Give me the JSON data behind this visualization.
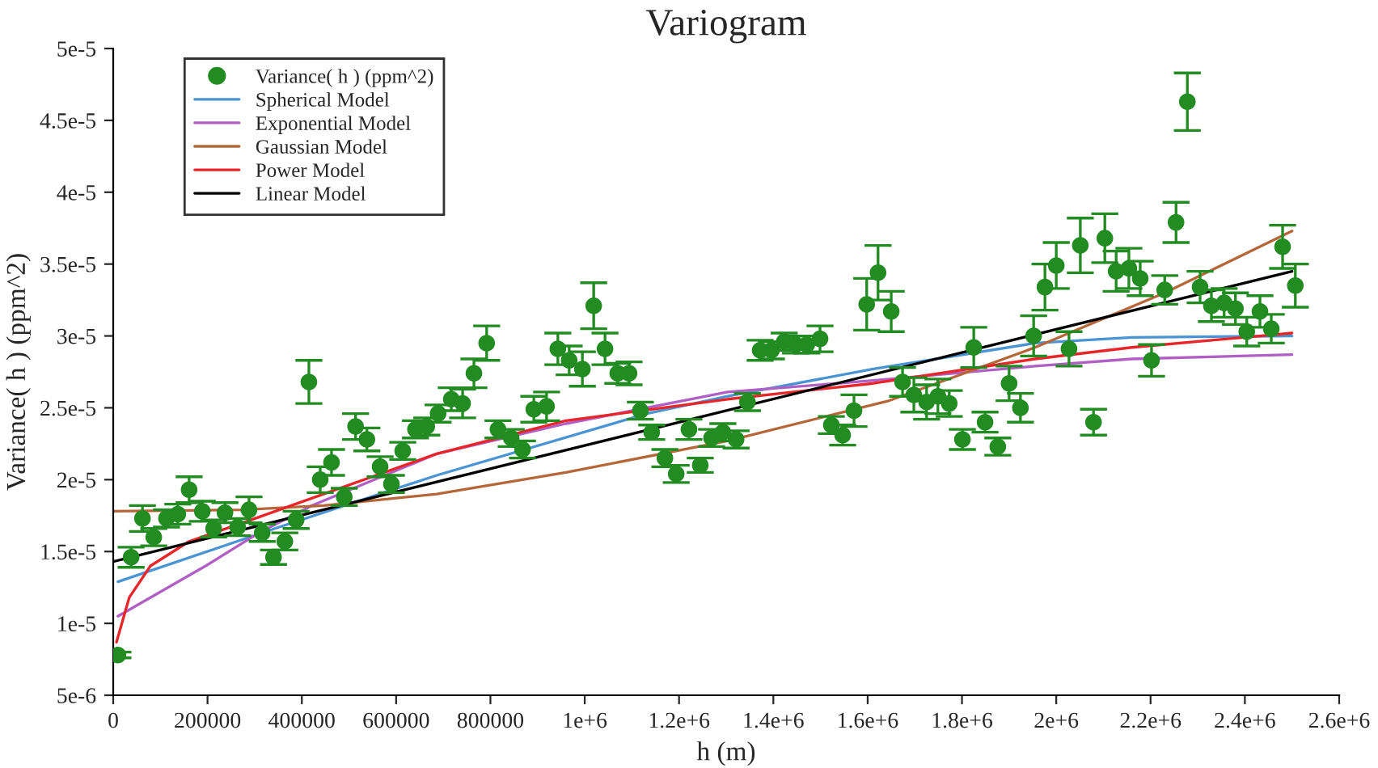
{
  "chart_data": {
    "type": "scatter",
    "title": "Variogram",
    "xlabel": "h (m)",
    "ylabel": "Variance( h ) (ppm^2)",
    "xlim": [
      0,
      2600000
    ],
    "xticks": [
      0,
      200000,
      400000,
      600000,
      800000,
      {
        "value": 1000000,
        "label": "1e+6"
      },
      {
        "value": 1200000,
        "label": "1.2e+6"
      },
      {
        "value": 1400000,
        "label": "1.4e+6"
      },
      {
        "value": 1600000,
        "label": "1.6e+6"
      },
      {
        "value": 1800000,
        "label": "1.8e+6"
      },
      {
        "value": 2000000,
        "label": "2e+6"
      },
      {
        "value": 2200000,
        "label": "2.2e+6"
      },
      {
        "value": 2400000,
        "label": "2.4e+6"
      },
      {
        "value": 2600000,
        "label": "2.6e+6"
      }
    ],
    "ylim": [
      5e-06,
      5e-05
    ],
    "yticks": [
      {
        "value": 5e-06,
        "label": "5e-6"
      },
      {
        "value": 1e-05,
        "label": "1e-5"
      },
      {
        "value": 1.5e-05,
        "label": "1.5e-5"
      },
      {
        "value": 2e-05,
        "label": "2e-5"
      },
      {
        "value": 2.5e-05,
        "label": "2.5e-5"
      },
      {
        "value": 3e-05,
        "label": "3e-5"
      },
      {
        "value": 3.5e-05,
        "label": "3.5e-5"
      },
      {
        "value": 4e-05,
        "label": "4e-5"
      },
      {
        "value": 4.5e-05,
        "label": "4.5e-5"
      },
      {
        "value": 5e-05,
        "label": "5e-5"
      }
    ],
    "grid": false,
    "legend": "top left",
    "series": [
      {
        "name": "Variance( h ) (ppm^2)",
        "marker": "circle",
        "color": "#228b22",
        "x": [
          10000,
          38000,
          62000,
          86000,
          113000,
          137000,
          161000,
          189000,
          213000,
          237000,
          264000,
          288000,
          316000,
          340000,
          364000,
          388000,
          415000,
          439000,
          463000,
          490000,
          514000,
          538000,
          566000,
          590000,
          614000,
          641000,
          665000,
          689000,
          717000,
          741000,
          765000,
          792000,
          816000,
          844000,
          868000,
          892000,
          919000,
          943000,
          967000,
          995000,
          1019000,
          1043000,
          1070000,
          1094000,
          1118000,
          1142000,
          1170000,
          1194000,
          1221000,
          1245000,
          1269000,
          1293000,
          1321000,
          1345000,
          1372000,
          1396000,
          1423000,
          1447000,
          1471000,
          1499000,
          1523000,
          1547000,
          1571000,
          1598000,
          1622000,
          1650000,
          1674000,
          1698000,
          1725000,
          1749000,
          1773000,
          1801000,
          1825000,
          1849000,
          1876000,
          1900000,
          1924000,
          1952000,
          1976000,
          2000000,
          2027000,
          2051000,
          2079000,
          2103000,
          2127000,
          2154000,
          2178000,
          2202000,
          2230000,
          2254000,
          2278000,
          2305000,
          2329000,
          2356000,
          2380000,
          2404000,
          2432000,
          2456000,
          2480000,
          2507000
        ],
        "values": [
          7.8e-06,
          1.46e-05,
          1.73e-05,
          1.6e-05,
          1.73e-05,
          1.76e-05,
          1.93e-05,
          1.78e-05,
          1.66e-05,
          1.77e-05,
          1.67e-05,
          1.79e-05,
          1.63e-05,
          1.46e-05,
          1.57e-05,
          1.72e-05,
          2.68e-05,
          2e-05,
          2.12e-05,
          1.88e-05,
          2.37e-05,
          2.28e-05,
          2.09e-05,
          1.97e-05,
          2.2e-05,
          2.35e-05,
          2.37e-05,
          2.46e-05,
          2.56e-05,
          2.53e-05,
          2.74e-05,
          2.95e-05,
          2.35e-05,
          2.29e-05,
          2.21e-05,
          2.49e-05,
          2.51e-05,
          2.91e-05,
          2.83e-05,
          2.77e-05,
          3.21e-05,
          2.91e-05,
          2.74e-05,
          2.74e-05,
          2.48e-05,
          2.33e-05,
          2.15e-05,
          2.04e-05,
          2.35e-05,
          2.1e-05,
          2.29e-05,
          2.33e-05,
          2.28e-05,
          2.54e-05,
          2.9e-05,
          2.9e-05,
          2.96e-05,
          2.94e-05,
          2.94e-05,
          2.98e-05,
          2.38e-05,
          2.31e-05,
          2.48e-05,
          3.22e-05,
          3.44e-05,
          3.17e-05,
          2.68e-05,
          2.59e-05,
          2.54e-05,
          2.58e-05,
          2.53e-05,
          2.28e-05,
          2.92e-05,
          2.4e-05,
          2.23e-05,
          2.67e-05,
          2.5e-05,
          3e-05,
          3.34e-05,
          3.49e-05,
          2.91e-05,
          3.63e-05,
          2.4e-05,
          3.68e-05,
          3.45e-05,
          3.47e-05,
          3.4e-05,
          2.83e-05,
          3.32e-05,
          3.79e-05,
          4.63e-05,
          3.34e-05,
          3.21e-05,
          3.23e-05,
          3.19e-05,
          3.03e-05,
          3.17e-05,
          3.05e-05,
          3.62e-05,
          3.35e-05
        ],
        "errors": [
          2e-07,
          7e-07,
          9e-07,
          6e-07,
          6e-07,
          7e-07,
          9e-07,
          7e-07,
          6e-07,
          7e-07,
          6e-07,
          9e-07,
          6e-07,
          5e-07,
          6e-07,
          6e-07,
          1.5e-06,
          9e-07,
          9e-07,
          6e-07,
          9e-07,
          8e-07,
          7e-07,
          6e-07,
          6e-07,
          6e-07,
          6e-07,
          6e-07,
          8e-07,
          1e-06,
          1e-06,
          1.2e-06,
          6e-07,
          6e-07,
          6e-07,
          9e-07,
          1e-06,
          1.1e-06,
          1e-06,
          1.2e-06,
          1.6e-06,
          1.1e-06,
          7e-07,
          8e-07,
          6e-07,
          5e-07,
          6e-07,
          6e-07,
          7e-07,
          5e-07,
          6e-07,
          6e-07,
          6e-07,
          6e-07,
          7e-07,
          6e-07,
          6e-07,
          6e-07,
          6e-07,
          9e-07,
          6e-07,
          7e-07,
          1.1e-06,
          1.8e-06,
          1.9e-06,
          1.4e-06,
          1e-06,
          1.2e-06,
          1.2e-06,
          1.2e-06,
          9e-07,
          7e-07,
          1.4e-06,
          7e-07,
          6e-07,
          1.2e-06,
          1e-06,
          1.4e-06,
          1.6e-06,
          1.6e-06,
          1.2e-06,
          1.9e-06,
          9e-07,
          1.7e-06,
          1.4e-06,
          1.4e-06,
          1.2e-06,
          1.1e-06,
          1e-06,
          1.4e-06,
          2e-06,
          1.1e-06,
          1.1e-06,
          1e-06,
          1.1e-06,
          1e-06,
          1.1e-06,
          1e-06,
          1.5e-06,
          1.5e-06
        ]
      },
      {
        "name": "Spherical Model",
        "type": "line",
        "marker": "none",
        "color": "#4a94d4",
        "x": [
          10000,
          343000,
          686000,
          1132000,
          1303000,
          1612000,
          1955000,
          2160000,
          2500000
        ],
        "values": [
          1.29e-05,
          1.66e-05,
          2.03e-05,
          2.46e-05,
          2.58e-05,
          2.77e-05,
          2.95e-05,
          2.99e-05,
          3e-05
        ]
      },
      {
        "name": "Exponential Model",
        "type": "line",
        "marker": "none",
        "color": "#b05fc4",
        "x": [
          10000,
          196000,
          309000,
          422000,
          686000,
          960000,
          1303000,
          1612000,
          1955000,
          2160000,
          2500000
        ],
        "values": [
          1.05e-05,
          1.4e-05,
          1.63e-05,
          1.82e-05,
          2.18e-05,
          2.39e-05,
          2.61e-05,
          2.69e-05,
          2.79e-05,
          2.84e-05,
          2.87e-05
        ]
      },
      {
        "name": "Gaussian Model",
        "type": "line",
        "marker": "none",
        "color": "#b5673a",
        "x": [
          0,
          274000,
          446000,
          686000,
          960000,
          1303000,
          1646000,
          1955000,
          2230000,
          2500000
        ],
        "values": [
          1.78e-05,
          1.79e-05,
          1.82e-05,
          1.9e-05,
          2.05e-05,
          2.27e-05,
          2.55e-05,
          2.92e-05,
          3.3e-05,
          3.73e-05
        ]
      },
      {
        "name": "Power Model",
        "type": "line",
        "marker": "none",
        "color": "#e8262a",
        "x": [
          7000,
          34000,
          79000,
          161000,
          309000,
          686000,
          960000,
          1303000,
          1612000,
          1955000,
          2160000,
          2500000
        ],
        "values": [
          8.7e-06,
          1.18e-05,
          1.4e-05,
          1.57e-05,
          1.74e-05,
          2.18e-05,
          2.41e-05,
          2.56e-05,
          2.67e-05,
          2.84e-05,
          2.92e-05,
          3.02e-05
        ]
      },
      {
        "name": "Linear Model",
        "type": "line",
        "marker": "none",
        "color": "#000000",
        "x": [
          0,
          2500000
        ],
        "values": [
          1.43e-05,
          3.45e-05
        ]
      }
    ]
  }
}
